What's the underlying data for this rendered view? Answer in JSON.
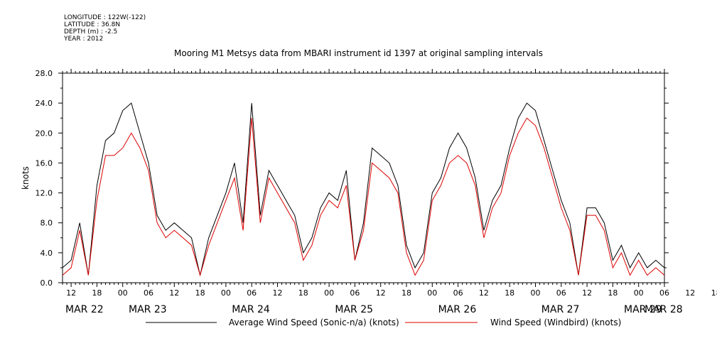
{
  "header": {
    "meta_lines": [
      "LONGITUDE : 122W(-122)",
      "LATITUDE : 36.8N",
      "DEPTH (m) : -2.5",
      "YEAR : 2012"
    ],
    "title": "Mooring M1 Metsys data from MBARI instrument id 1397 at original sampling intervals"
  },
  "chart_data": {
    "type": "line",
    "title": "Mooring M1 Metsys data from MBARI instrument id 1397 at original sampling intervals",
    "ylabel": "knots",
    "xlabel": "",
    "ylim": [
      0,
      28
    ],
    "yticks": [
      "0.0",
      "4.0",
      "8.0",
      "12.0",
      "16.0",
      "20.0",
      "24.0",
      "28.0"
    ],
    "xlim_hours": [
      -14,
      126
    ],
    "hour_ticks": [
      "12",
      "18",
      "00",
      "06",
      "12",
      "18",
      "00",
      "06",
      "12",
      "18",
      "00",
      "06",
      "12",
      "18",
      "00",
      "06",
      "12",
      "18",
      "00",
      "06",
      "12",
      "18",
      "00",
      "06",
      "12",
      "18",
      "00",
      "06",
      "12",
      "18",
      "00",
      "06"
    ],
    "date_labels": [
      "MAR 22",
      "MAR 23",
      "MAR 24",
      "MAR 25",
      "MAR 26",
      "MAR 27",
      "MAR 28",
      "MAR 29"
    ],
    "x_hours": [
      -14,
      -12,
      -10,
      -8,
      -6,
      -4,
      -2,
      0,
      2,
      4,
      6,
      8,
      10,
      12,
      14,
      16,
      18,
      20,
      22,
      24,
      26,
      28,
      30,
      32,
      34,
      36,
      38,
      40,
      42,
      44,
      46,
      48,
      50,
      52,
      54,
      56,
      58,
      60,
      62,
      64,
      66,
      68,
      70,
      72,
      74,
      76,
      78,
      80,
      82,
      84,
      86,
      88,
      90,
      92,
      94,
      96,
      98,
      100,
      102,
      104,
      106,
      108,
      110,
      112,
      114,
      116,
      118,
      120,
      122,
      124,
      126
    ],
    "series": [
      {
        "name": "Average Wind Speed (Sonic-n/a) (knots)",
        "color": "#000000",
        "values": [
          2,
          3,
          8,
          1,
          13,
          19,
          20,
          23,
          24,
          20,
          16,
          9,
          7,
          8,
          7,
          6,
          1,
          6,
          9,
          12,
          16,
          8,
          24,
          9,
          15,
          13,
          11,
          9,
          4,
          6,
          10,
          12,
          11,
          15,
          3,
          8,
          18,
          17,
          16,
          13,
          5,
          2,
          4,
          12,
          14,
          18,
          20,
          18,
          14,
          7,
          11,
          13,
          18,
          22,
          24,
          23,
          19,
          15,
          11,
          8,
          1,
          10,
          10,
          8,
          3,
          5,
          2,
          4,
          2,
          3,
          2
        ]
      },
      {
        "name": "Wind Speed (Windbird) (knots)",
        "color": "#dd0000",
        "values": [
          1,
          2,
          7,
          1,
          11,
          17,
          17,
          18,
          20,
          18,
          15,
          8,
          6,
          7,
          6,
          5,
          1,
          5,
          8,
          11,
          14,
          7,
          22,
          8,
          14,
          12,
          10,
          8,
          3,
          5,
          9,
          11,
          10,
          13,
          3,
          7,
          16,
          15,
          14,
          12,
          4,
          1,
          3,
          11,
          13,
          16,
          17,
          16,
          13,
          6,
          10,
          12,
          17,
          20,
          22,
          21,
          18,
          14,
          10,
          7,
          1,
          9,
          9,
          7,
          2,
          4,
          1,
          3,
          1,
          2,
          1
        ]
      }
    ],
    "legend_placement": "bottom"
  }
}
